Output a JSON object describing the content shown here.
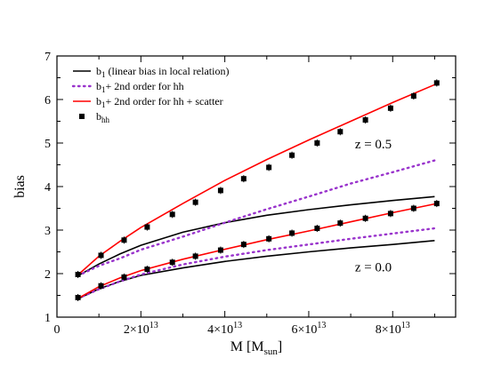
{
  "chart_data": {
    "type": "line",
    "xlabel": "M [M",
    "xlabel_sub": "sun",
    "xlabel_suffix": "]",
    "ylabel": "bias",
    "xlim": [
      0,
      95000000000000.0
    ],
    "ylim": [
      1,
      7
    ],
    "x_ticks": [
      {
        "value": 0,
        "base": "0",
        "exp": ""
      },
      {
        "value": 20000000000000.0,
        "base": "2×10",
        "exp": "13"
      },
      {
        "value": 40000000000000.0,
        "base": "4×10",
        "exp": "13"
      },
      {
        "value": 60000000000000.0,
        "base": "6×10",
        "exp": "13"
      },
      {
        "value": 80000000000000.0,
        "base": "8×10",
        "exp": "13"
      }
    ],
    "y_ticks": [
      "1",
      "2",
      "3",
      "4",
      "5",
      "6",
      "7"
    ],
    "y_tick_values": [
      1,
      2,
      3,
      4,
      5,
      6,
      7
    ],
    "legend": {
      "placement": "top-left",
      "entries": [
        {
          "main": "b",
          "sub": "1",
          "rest": " (linear bias in local relation)",
          "style": "solid-black"
        },
        {
          "main": "b",
          "sub": "1",
          "rest": "+ 2nd order for hh",
          "style": "dotted-purple"
        },
        {
          "main": "b",
          "sub": "1",
          "rest": "+ 2nd order for hh + scatter",
          "style": "solid-red"
        },
        {
          "main": "b",
          "sub": "hh",
          "rest": "",
          "style": "square-black"
        }
      ]
    },
    "annotations": [
      {
        "text": "z = 0.5",
        "x": 71000000000000.0,
        "y": 4.88
      },
      {
        "text": "z = 0.0",
        "x": 71000000000000.0,
        "y": 2.05
      }
    ],
    "colors": {
      "black": "#000000",
      "purple": "#9933cc",
      "red": "#ff0000"
    },
    "series": [
      {
        "group": "z=0.5",
        "style": "solid-black",
        "x": [
          5000000000000.0,
          10000000000000.0,
          15000000000000.0,
          20000000000000.0,
          30000000000000.0,
          40000000000000.0,
          50000000000000.0,
          60000000000000.0,
          70000000000000.0,
          80000000000000.0,
          90000000000000.0
        ],
        "y": [
          1.95,
          2.22,
          2.45,
          2.65,
          2.95,
          3.17,
          3.34,
          3.47,
          3.58,
          3.68,
          3.77
        ]
      },
      {
        "group": "z=0.5",
        "style": "dotted-purple",
        "x": [
          5000000000000.0,
          10000000000000.0,
          15000000000000.0,
          20000000000000.0,
          30000000000000.0,
          40000000000000.0,
          50000000000000.0,
          60000000000000.0,
          70000000000000.0,
          80000000000000.0,
          90000000000000.0
        ],
        "y": [
          1.95,
          2.18,
          2.35,
          2.55,
          2.85,
          3.17,
          3.48,
          3.77,
          4.07,
          4.33,
          4.6
        ]
      },
      {
        "group": "z=0.5",
        "style": "solid-red",
        "x": [
          5000000000000.0,
          10000000000000.0,
          15000000000000.0,
          20000000000000.0,
          30000000000000.0,
          40000000000000.0,
          50000000000000.0,
          60000000000000.0,
          70000000000000.0,
          80000000000000.0,
          90000000000000.0
        ],
        "y": [
          1.97,
          2.4,
          2.74,
          3.06,
          3.61,
          4.14,
          4.62,
          5.07,
          5.5,
          5.93,
          6.34
        ]
      },
      {
        "group": "z=0.5",
        "style": "square-black",
        "x": [
          5000000000000.0,
          10500000000000.0,
          16000000000000.0,
          21500000000000.0,
          27500000000000.0,
          33000000000000.0,
          39000000000000.0,
          44500000000000.0,
          50500000000000.0,
          56000000000000.0,
          62000000000000.0,
          67500000000000.0,
          73500000000000.0,
          79500000000000.0,
          85000000000000.0,
          90500000000000.0
        ],
        "y": [
          1.98,
          2.42,
          2.77,
          3.07,
          3.36,
          3.64,
          3.91,
          4.18,
          4.44,
          4.72,
          5.0,
          5.26,
          5.53,
          5.8,
          6.08,
          6.38
        ]
      },
      {
        "group": "z=0.0",
        "style": "solid-black",
        "x": [
          5000000000000.0,
          10000000000000.0,
          15000000000000.0,
          20000000000000.0,
          30000000000000.0,
          40000000000000.0,
          50000000000000.0,
          60000000000000.0,
          70000000000000.0,
          80000000000000.0,
          90000000000000.0
        ],
        "y": [
          1.42,
          1.65,
          1.82,
          1.96,
          2.13,
          2.28,
          2.4,
          2.5,
          2.59,
          2.67,
          2.76
        ]
      },
      {
        "group": "z=0.0",
        "style": "dotted-purple",
        "x": [
          5000000000000.0,
          10000000000000.0,
          15000000000000.0,
          20000000000000.0,
          30000000000000.0,
          40000000000000.0,
          50000000000000.0,
          60000000000000.0,
          70000000000000.0,
          80000000000000.0,
          90000000000000.0
        ],
        "y": [
          1.43,
          1.64,
          1.82,
          1.98,
          2.21,
          2.39,
          2.54,
          2.67,
          2.8,
          2.92,
          3.04
        ]
      },
      {
        "group": "z=0.0",
        "style": "solid-red",
        "x": [
          5000000000000.0,
          10000000000000.0,
          15000000000000.0,
          20000000000000.0,
          30000000000000.0,
          40000000000000.0,
          50000000000000.0,
          60000000000000.0,
          70000000000000.0,
          80000000000000.0,
          90000000000000.0
        ],
        "y": [
          1.43,
          1.7,
          1.9,
          2.07,
          2.33,
          2.56,
          2.78,
          2.98,
          3.19,
          3.4,
          3.6
        ]
      },
      {
        "group": "z=0.0",
        "style": "square-black",
        "x": [
          5000000000000.0,
          10500000000000.0,
          16000000000000.0,
          21500000000000.0,
          27500000000000.0,
          33000000000000.0,
          39000000000000.0,
          44500000000000.0,
          50500000000000.0,
          56000000000000.0,
          62000000000000.0,
          67500000000000.0,
          73500000000000.0,
          79500000000000.0,
          85000000000000.0,
          90500000000000.0
        ],
        "y": [
          1.45,
          1.72,
          1.92,
          2.1,
          2.26,
          2.4,
          2.54,
          2.67,
          2.8,
          2.93,
          3.04,
          3.16,
          3.27,
          3.38,
          3.5,
          3.61
        ]
      }
    ]
  }
}
